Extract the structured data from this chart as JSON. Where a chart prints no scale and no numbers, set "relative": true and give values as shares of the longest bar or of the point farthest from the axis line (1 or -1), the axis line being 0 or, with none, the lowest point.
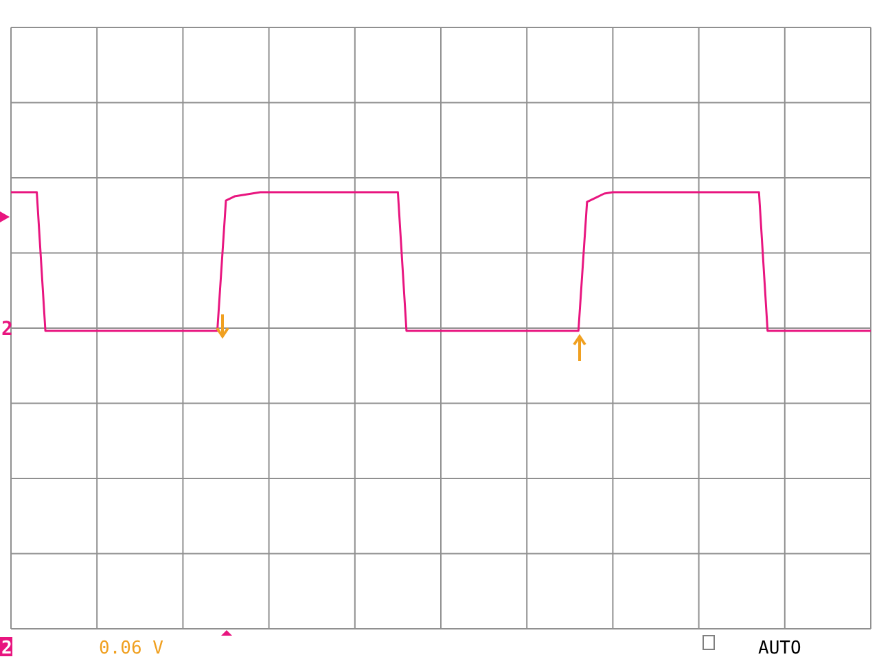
{
  "chart_data": {
    "type": "line",
    "relative": true,
    "grid": true,
    "categories": [
      null,
      null,
      null,
      null,
      null,
      null,
      null,
      null,
      null,
      null,
      null,
      null,
      null,
      null,
      null,
      null,
      null,
      null,
      null,
      null,
      null,
      null,
      null,
      null,
      null,
      null,
      null,
      null,
      null,
      null,
      null,
      null,
      null,
      null,
      null,
      null,
      null,
      null,
      null,
      null,
      null,
      null,
      null,
      null,
      null,
      null,
      null,
      null,
      null,
      null,
      null,
      null,
      null,
      null,
      null,
      null,
      null,
      null,
      null,
      null,
      null,
      null,
      null,
      null,
      null,
      null,
      null,
      null,
      null,
      null,
      null,
      null,
      null,
      null,
      null,
      null,
      null,
      null,
      null,
      null,
      null,
      null,
      null,
      null,
      null,
      null,
      null,
      null,
      null,
      null,
      null,
      null,
      null,
      null,
      null,
      null,
      null,
      null,
      null,
      null,
      null
    ],
    "series": [
      {
        "color": "#e8157f",
        "values": [
          1,
          1,
          1,
          1,
          0,
          0,
          0,
          0,
          0,
          0,
          0,
          0,
          0,
          0,
          0,
          0,
          0,
          0,
          0,
          0,
          0,
          0,
          0,
          0,
          0,
          0.94,
          0.97,
          0.98,
          0.99,
          1,
          1,
          1,
          1,
          1,
          1,
          1,
          1,
          1,
          1,
          1,
          1,
          1,
          1,
          1,
          1,
          1,
          0,
          0,
          0,
          0,
          0,
          0,
          0,
          0,
          0,
          0,
          0,
          0,
          0,
          0,
          0,
          0,
          0,
          0,
          0,
          0,
          0,
          0.93,
          0.96,
          0.99,
          1,
          1,
          1,
          1,
          1,
          1,
          1,
          1,
          1,
          1,
          1,
          1,
          1,
          1,
          1,
          1,
          1,
          1,
          0,
          0,
          0,
          0,
          0,
          0,
          0,
          0,
          0,
          0,
          0,
          0,
          0
        ]
      }
    ],
    "annotations": [
      "2",
      "0.06 V",
      "AUTO"
    ]
  }
}
